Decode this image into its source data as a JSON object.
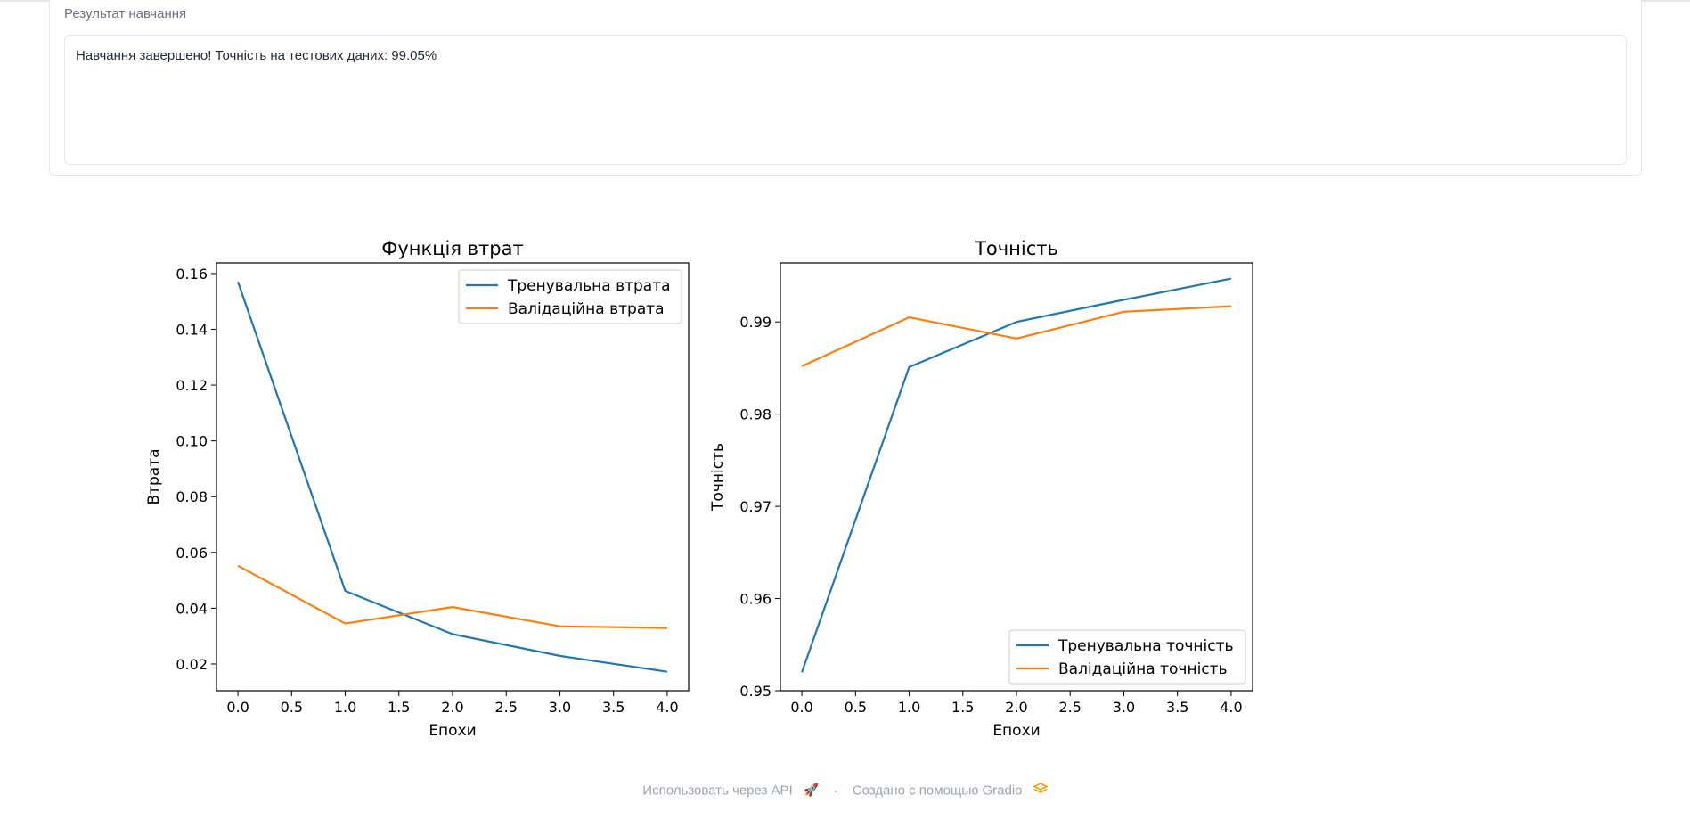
{
  "result_block": {
    "label": "Результат навчання",
    "text": "Навчання завершено! Точність на тестових даних: 99.05%"
  },
  "chart_data": [
    {
      "type": "line",
      "title": "Функція втрат",
      "xlabel": "Епохи",
      "ylabel": "Втрата",
      "x": [
        0,
        1,
        2,
        3,
        4
      ],
      "xlim": [
        -0.2,
        4.2
      ],
      "ylim": [
        0.0104,
        0.1638
      ],
      "xticks": [
        0.0,
        0.5,
        1.0,
        1.5,
        2.0,
        2.5,
        3.0,
        3.5,
        4.0
      ],
      "yticks": [
        0.02,
        0.04,
        0.06,
        0.08,
        0.1,
        0.12,
        0.14,
        0.16
      ],
      "grid": false,
      "legend": "top-right",
      "series": [
        {
          "name": "Тренувальна втрата",
          "color": "#1f77b4",
          "values": [
            0.157,
            0.0462,
            0.0307,
            0.0229,
            0.0172
          ]
        },
        {
          "name": "Валідаційна втрата",
          "color": "#ff7f0e",
          "values": [
            0.0552,
            0.0345,
            0.0404,
            0.0335,
            0.0329
          ]
        }
      ]
    },
    {
      "type": "line",
      "title": "Точність",
      "xlabel": "Епохи",
      "ylabel": "Точність",
      "x": [
        0,
        1,
        2,
        3,
        4
      ],
      "xlim": [
        -0.2,
        4.2
      ],
      "ylim": [
        0.95,
        0.9964
      ],
      "xticks": [
        0.0,
        0.5,
        1.0,
        1.5,
        2.0,
        2.5,
        3.0,
        3.5,
        4.0
      ],
      "yticks": [
        0.95,
        0.96,
        0.97,
        0.98,
        0.99
      ],
      "grid": false,
      "legend": "bottom-right",
      "series": [
        {
          "name": "Тренувальна точність",
          "color": "#1f77b4",
          "values": [
            0.952,
            0.9851,
            0.99,
            0.9924,
            0.9947
          ]
        },
        {
          "name": "Валідаційна точність",
          "color": "#ff7f0e",
          "values": [
            0.9852,
            0.9905,
            0.9882,
            0.9911,
            0.9917
          ]
        }
      ]
    }
  ],
  "footer": {
    "api_link": "Использовать через API",
    "api_icon": "rocket-icon",
    "separator": "·",
    "built_with": "Создано с помощью Gradio",
    "gradio_icon": "gradio-logo-icon"
  }
}
